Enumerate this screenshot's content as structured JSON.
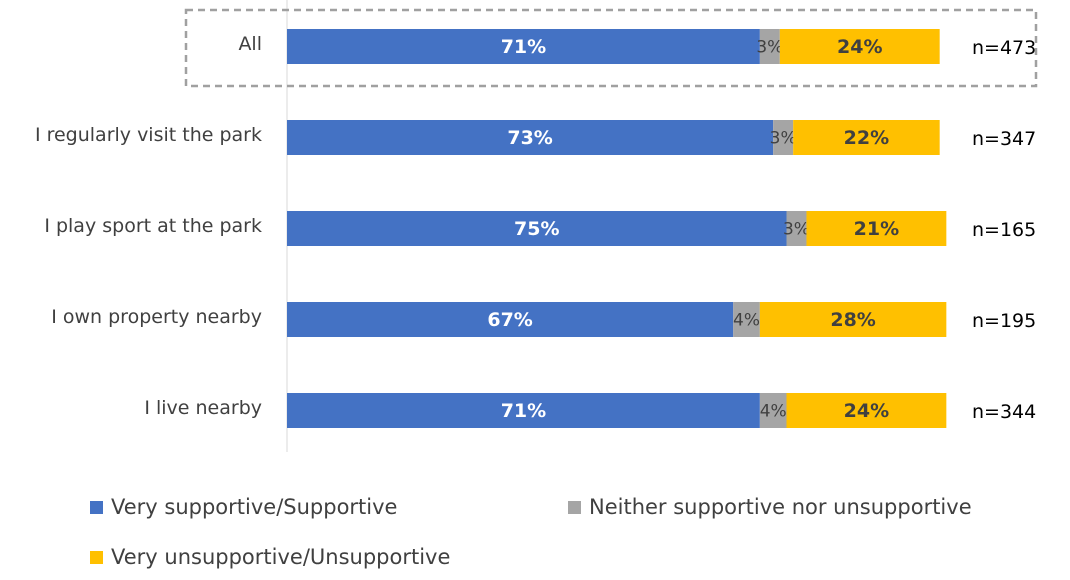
{
  "chart_data": {
    "type": "bar",
    "orientation": "horizontal",
    "stacked": true,
    "percent_stacked": true,
    "categories": [
      "All",
      "I regularly visit the park",
      "I play sport at the park",
      "I own property nearby",
      "I live nearby"
    ],
    "series": [
      {
        "name": "Very supportive/Supportive",
        "color": "#4472C4",
        "values": [
          71,
          73,
          75,
          67,
          71
        ],
        "labels": [
          "71%",
          "73%",
          "75%",
          "67%",
          "71%"
        ]
      },
      {
        "name": "Neither supportive nor unsupportive",
        "color": "#A5A5A5",
        "values": [
          3,
          3,
          3,
          4,
          4
        ],
        "labels": [
          "3%",
          "3%",
          "3%",
          "4%",
          "4%"
        ]
      },
      {
        "name": "Very unsupportive/Unsupportive",
        "color": "#FFC000",
        "values": [
          24,
          22,
          21,
          28,
          24
        ],
        "labels": [
          "24%",
          "22%",
          "21%",
          "28%",
          "24%"
        ]
      }
    ],
    "sample_sizes": [
      "n=473",
      "n=347",
      "n=165",
      "n=195",
      "n=344"
    ],
    "highlighted_category": "All",
    "title": "",
    "xlabel": "",
    "ylabel": "",
    "xlim": [
      0,
      100
    ],
    "grid": false,
    "legend_position": "bottom"
  }
}
